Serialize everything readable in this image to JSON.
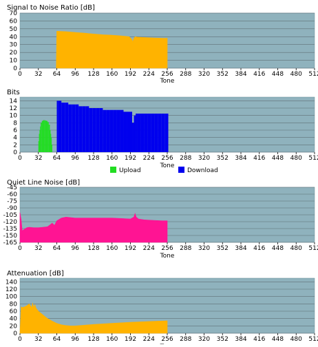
{
  "chart_data": [
    {
      "type": "area",
      "title": "Signal to Noise Ratio [dB]",
      "xlabel": "Tone",
      "xlim": [
        0,
        512
      ],
      "xticks": [
        0,
        32,
        64,
        96,
        128,
        160,
        192,
        224,
        256,
        288,
        320,
        352,
        384,
        416,
        448,
        480,
        512
      ],
      "ylim": [
        0,
        70
      ],
      "yticks": [
        0,
        10,
        20,
        30,
        40,
        50,
        60,
        70
      ],
      "grid": true,
      "background": "#8fb2bd",
      "series": [
        {
          "color": "#ffb300",
          "x": [
            63,
            64,
            80,
            96,
            112,
            128,
            144,
            160,
            176,
            190,
            195,
            196,
            198,
            200,
            204,
            216,
            232,
            248,
            256
          ],
          "y": [
            0,
            47,
            46.5,
            45.5,
            44.5,
            43.5,
            42.5,
            42,
            41,
            40,
            36,
            33,
            38,
            40,
            39.5,
            39,
            38.5,
            38,
            38
          ]
        }
      ]
    },
    {
      "type": "bar",
      "title": "Bits",
      "xlabel": "Tone",
      "xlim": [
        0,
        512
      ],
      "xticks": [
        0,
        32,
        64,
        96,
        128,
        160,
        192,
        224,
        256,
        288,
        320,
        352,
        384,
        416,
        448,
        480,
        512
      ],
      "ylim": [
        0,
        15
      ],
      "yticks": [
        0,
        2,
        4,
        6,
        8,
        10,
        12,
        14
      ],
      "grid": true,
      "background": "#8fb2bd",
      "legend": "bottom",
      "series": [
        {
          "name": "Upload",
          "color": "#22dd22",
          "x": [
            32,
            33,
            34,
            35,
            36,
            38,
            40,
            42,
            44,
            46,
            48,
            50,
            52,
            53,
            54,
            55,
            56
          ],
          "y": [
            3,
            5,
            6,
            7,
            8,
            8.5,
            8.7,
            8.7,
            8.6,
            8.5,
            8.2,
            7.5,
            6,
            5,
            4,
            2,
            0
          ]
        },
        {
          "name": "Download",
          "color": "#0000ee",
          "x": [
            64,
            66,
            72,
            78,
            84,
            90,
            96,
            102,
            108,
            114,
            120,
            126,
            132,
            138,
            144,
            150,
            156,
            162,
            168,
            174,
            180,
            186,
            192,
            195,
            198,
            201,
            204,
            210,
            216,
            222,
            228,
            234,
            240,
            246,
            252,
            256
          ],
          "y": [
            14,
            14,
            13.5,
            13.5,
            13,
            13,
            13,
            12.5,
            12.5,
            12.5,
            12,
            12,
            12,
            12,
            11.5,
            11.5,
            11.5,
            11.5,
            11.5,
            11.5,
            11,
            11,
            11,
            8,
            10,
            10.5,
            10.5,
            10.5,
            10.5,
            10.5,
            10.5,
            10.5,
            10.5,
            10.5,
            10.5,
            10.5
          ]
        }
      ]
    },
    {
      "type": "area",
      "title": "Quiet Line Noise [dB]",
      "xlabel": "Tone",
      "xlim": [
        0,
        512
      ],
      "xticks": [
        0,
        32,
        64,
        96,
        128,
        160,
        192,
        224,
        256,
        288,
        320,
        352,
        384,
        416,
        448,
        480,
        512
      ],
      "ylim": [
        -165,
        -45
      ],
      "yticks": [
        -45,
        -60,
        -75,
        -90,
        -105,
        -120,
        -135,
        -150,
        -165
      ],
      "grid": true,
      "background": "#8fb2bd",
      "series": [
        {
          "color": "#ff1493",
          "x": [
            0,
            2,
            4,
            8,
            12,
            16,
            24,
            32,
            40,
            48,
            52,
            56,
            60,
            64,
            72,
            80,
            96,
            112,
            128,
            144,
            160,
            176,
            192,
            198,
            200,
            202,
            206,
            216,
            232,
            248,
            256
          ],
          "y": [
            -100,
            -115,
            -140,
            -136,
            -133,
            -132,
            -133,
            -133,
            -132,
            -131,
            -127,
            -123,
            -128,
            -118,
            -112,
            -110,
            -112,
            -112,
            -112,
            -112,
            -112,
            -113,
            -114,
            -110,
            -102,
            -110,
            -114,
            -116,
            -117,
            -118,
            -118
          ]
        }
      ]
    },
    {
      "type": "area",
      "title": "Attenuation [dB]",
      "xlabel": "Tone",
      "xlim": [
        0,
        512
      ],
      "xticks": [
        0,
        32,
        64,
        96,
        128,
        160,
        192,
        224,
        256,
        288,
        320,
        352,
        384,
        416,
        448,
        480,
        512
      ],
      "ylim": [
        0,
        150
      ],
      "yticks": [
        0,
        20,
        40,
        60,
        80,
        100,
        120,
        140
      ],
      "grid": true,
      "background": "#8fb2bd",
      "series": [
        {
          "color": "#ffb300",
          "x": [
            0,
            2,
            4,
            8,
            12,
            16,
            20,
            22,
            24,
            26,
            28,
            32,
            40,
            48,
            56,
            64,
            72,
            80,
            88,
            96,
            112,
            128,
            160,
            192,
            224,
            256
          ],
          "y": [
            0,
            72,
            70,
            72,
            75,
            80,
            70,
            82,
            70,
            78,
            68,
            60,
            50,
            40,
            33,
            27,
            23,
            21,
            20,
            20,
            22,
            24,
            27,
            30,
            32,
            34
          ]
        }
      ]
    }
  ]
}
